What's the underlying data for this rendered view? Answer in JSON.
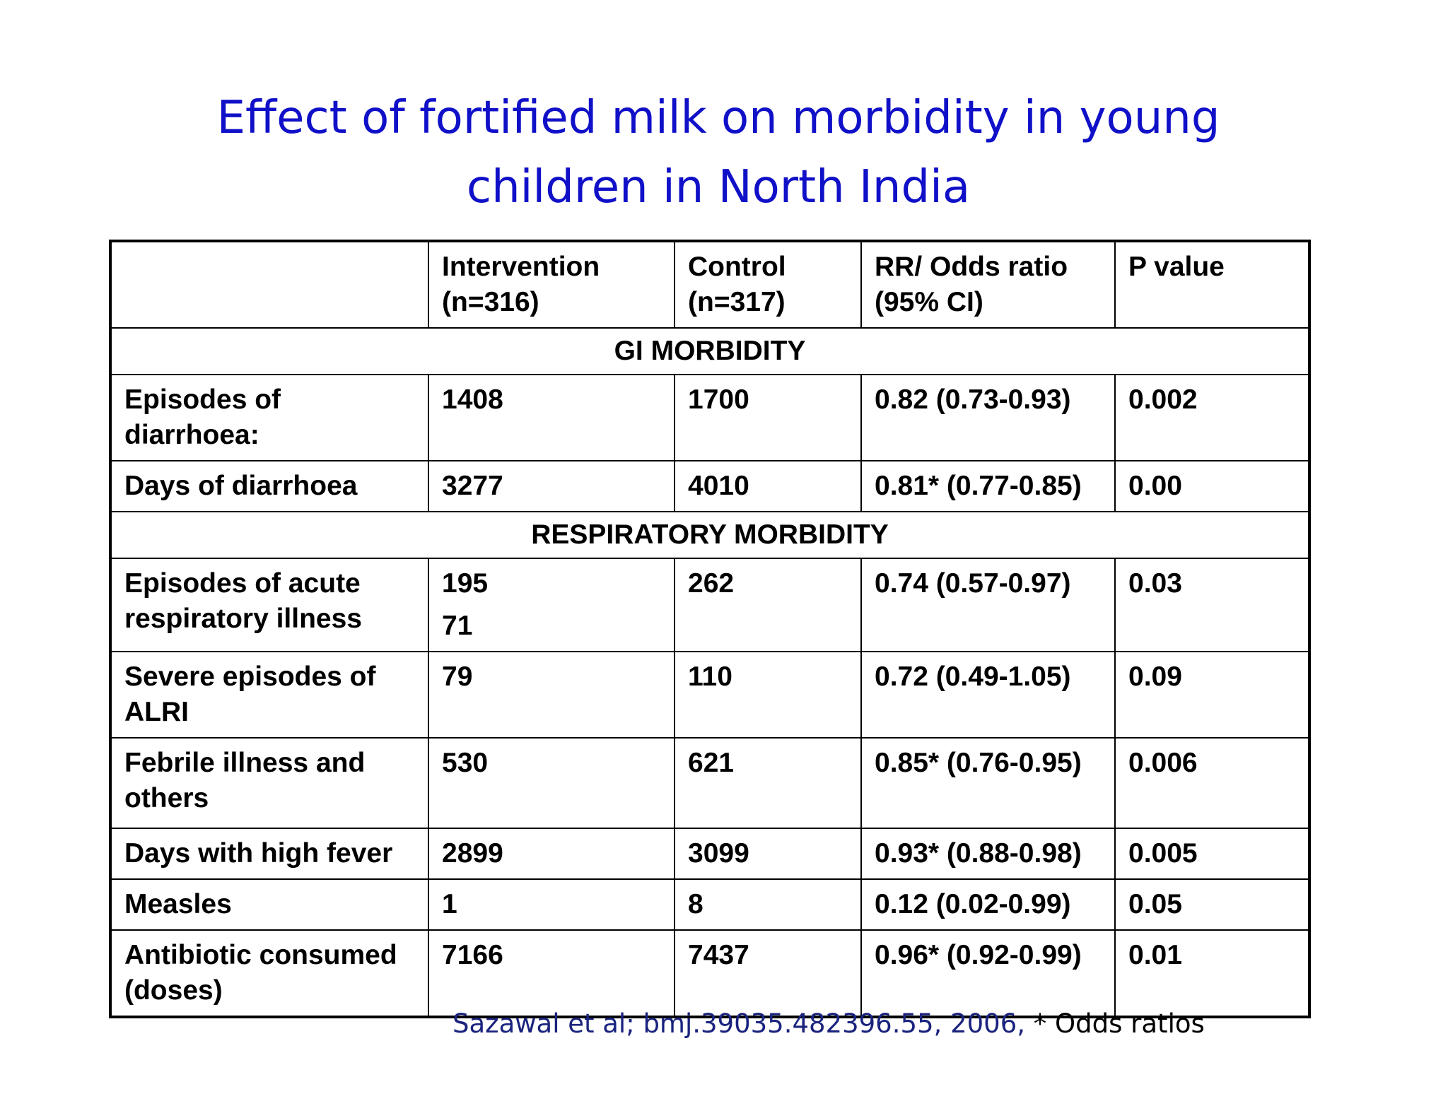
{
  "title": {
    "line1": "Effect of fortified milk on morbidity in young",
    "line2": "children in North India"
  },
  "table": {
    "headers": [
      {
        "line1": "",
        "line2": ""
      },
      {
        "line1": "Intervention",
        "line2": "(n=316)"
      },
      {
        "line1": "Control",
        "line2": "(n=317)"
      },
      {
        "line1": "RR/ Odds ratio",
        "line2": "(95% CI)"
      },
      {
        "line1": "P value",
        "line2": ""
      }
    ],
    "sections": [
      {
        "title": "GI MORBIDITY",
        "rows": [
          {
            "label": "Episodes of diarrhoea:",
            "intervention": "1408",
            "intervention_extra": "",
            "control": "1700",
            "ratio": "0.82 (0.73-0.93)",
            "p": "0.002"
          },
          {
            "label": "Days of diarrhoea",
            "intervention": "3277",
            "intervention_extra": "",
            "control": "4010",
            "ratio": "0.81* (0.77-0.85)",
            "p": "0.00"
          }
        ]
      },
      {
        "title": "RESPIRATORY MORBIDITY",
        "rows": [
          {
            "label": "Episodes of acute respiratory illness",
            "intervention": "195",
            "intervention_extra": "71",
            "control": "262",
            "ratio": "0.74 (0.57-0.97)",
            "p": "0.03"
          },
          {
            "label": "Severe episodes of ALRI",
            "intervention": "79",
            "intervention_extra": "",
            "control": "110",
            "ratio": "0.72 (0.49-1.05)",
            "p": "0.09"
          },
          {
            "label": "Febrile illness and others",
            "intervention": "530",
            "intervention_extra": "",
            "control": "621",
            "ratio": "0.85* (0.76-0.95)",
            "p": "0.006"
          },
          {
            "label": "Days with high fever",
            "intervention": "2899",
            "intervention_extra": "",
            "control": "3099",
            "ratio": "0.93* (0.88-0.98)",
            "p": "0.005"
          },
          {
            "label": "Measles",
            "intervention": "1",
            "intervention_extra": "",
            "control": "8",
            "ratio": "0.12 (0.02-0.99)",
            "p": "0.05"
          },
          {
            "label": "Antibiotic consumed (doses)",
            "intervention": "7166",
            "intervention_extra": "",
            "control": "7437",
            "ratio": "0.96* (0.92-0.99)",
            "p": "0.01"
          }
        ]
      }
    ]
  },
  "footer": {
    "citation": "Sazawal et al; bmj.39035.482396.55, 2006,",
    "note": " * Odds ratios"
  },
  "colors": {
    "title": "#1010c8",
    "citation": "#1a237e"
  }
}
